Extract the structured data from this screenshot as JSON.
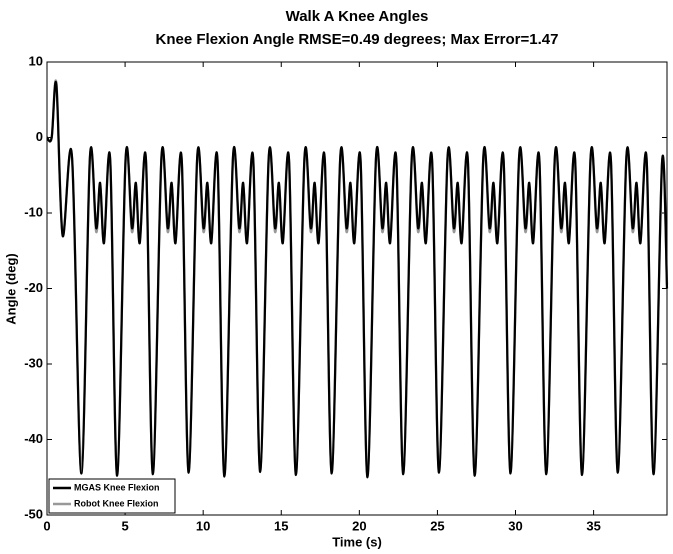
{
  "chart_data": {
    "type": "line",
    "title": "Walk A Knee Angles",
    "subtitle": "Knee Flexion Angle RMSE=0.49 degrees; Max Error=1.47",
    "x_label": "Time (s)",
    "y_label": "Angle (deg)",
    "xlim": [
      0,
      39.7
    ],
    "ylim": [
      -50,
      10
    ],
    "xticks": [
      0,
      5,
      10,
      15,
      20,
      25,
      30,
      35
    ],
    "yticks": [
      -50,
      -40,
      -30,
      -20,
      -10,
      0,
      10
    ],
    "legend": "lower left",
    "x": [
      0,
      0.3,
      0.6,
      1.0,
      1.6,
      2.2,
      2.75,
      3.15,
      3.4,
      3.65,
      4.05,
      4.49,
      5.04,
      5.44,
      5.69,
      5.94,
      6.34,
      6.78,
      7.33,
      7.73,
      7.98,
      8.23,
      8.63,
      9.07,
      9.62,
      10.02,
      10.27,
      10.52,
      10.92,
      11.36,
      11.91,
      12.31,
      12.56,
      12.81,
      13.21,
      13.65,
      14.2,
      14.6,
      14.85,
      15.1,
      15.5,
      15.94,
      16.49,
      16.89,
      17.14,
      17.39,
      17.79,
      18.23,
      18.78,
      19.18,
      19.43,
      19.68,
      20.08,
      20.52,
      21.07,
      21.47,
      21.72,
      21.97,
      22.37,
      22.81,
      23.36,
      23.76,
      24.01,
      24.26,
      24.66,
      25.1,
      25.65,
      26.05,
      26.3,
      26.55,
      26.95,
      27.39,
      27.94,
      28.34,
      28.59,
      28.84,
      29.24,
      29.68,
      30.23,
      30.63,
      30.88,
      31.13,
      31.53,
      31.97,
      32.52,
      32.92,
      33.17,
      33.42,
      33.82,
      34.26,
      34.81,
      35.21,
      35.46,
      35.71,
      36.11,
      36.55,
      37.1,
      37.5,
      37.75,
      38.0,
      38.4,
      38.84,
      39.39,
      39.7
    ],
    "series": [
      {
        "name": "MGAS Knee Flexion",
        "color": "#000000",
        "values": [
          0,
          0,
          7,
          -13,
          -2.5,
          -44.5,
          -2.5,
          -12,
          -6,
          -14,
          -3,
          -44.8,
          -2.5,
          -12,
          -6,
          -14,
          -3,
          -44.6,
          -2.5,
          -12,
          -6,
          -14,
          -3,
          -44.4,
          -2.5,
          -12,
          -6,
          -14,
          -3,
          -44.9,
          -2.5,
          -12,
          -6,
          -14,
          -3,
          -44.3,
          -2.5,
          -12,
          -6,
          -14,
          -3,
          -44.7,
          -2.5,
          -12,
          -6,
          -14,
          -3,
          -44.5,
          -2.5,
          -12,
          -6,
          -14,
          -3,
          -45,
          -2.5,
          -12,
          -6,
          -14,
          -3,
          -44.6,
          -2.5,
          -12,
          -6,
          -14,
          -3,
          -44.4,
          -2.5,
          -12,
          -6,
          -14,
          -3,
          -44.8,
          -2.5,
          -12,
          -6,
          -14,
          -3,
          -44.5,
          -2.5,
          -12,
          -6,
          -14,
          -3,
          -44.6,
          -2.5,
          -12,
          -6,
          -14,
          -3,
          -44.7,
          -2.5,
          -12,
          -6,
          -14,
          -3,
          -44.4,
          -2.5,
          -12,
          -6,
          -14,
          -3,
          -44.6,
          -3,
          -20
        ]
      },
      {
        "name": "Robot Knee Flexion",
        "color": "#999999",
        "values": [
          0,
          0,
          7.2,
          -12.8,
          -2.8,
          -44.1,
          -2.8,
          -12.5,
          -6.3,
          -13.5,
          -3.3,
          -44.4,
          -2.8,
          -12.5,
          -6.3,
          -13.5,
          -3.3,
          -44.2,
          -2.8,
          -12.5,
          -6.3,
          -13.5,
          -3.3,
          -44,
          -2.8,
          -12.5,
          -6.3,
          -13.5,
          -3.3,
          -44.5,
          -2.8,
          -12.5,
          -6.3,
          -13.5,
          -3.3,
          -43.9,
          -2.8,
          -12.5,
          -6.3,
          -13.5,
          -3.3,
          -44.3,
          -2.8,
          -12.5,
          -6.3,
          -13.5,
          -3.3,
          -44.1,
          -2.8,
          -12.5,
          -6.3,
          -13.5,
          -3.3,
          -44.6,
          -2.8,
          -12.5,
          -6.3,
          -13.5,
          -3.3,
          -44.2,
          -2.8,
          -12.5,
          -6.3,
          -13.5,
          -3.3,
          -44,
          -2.8,
          -12.5,
          -6.3,
          -13.5,
          -3.3,
          -44.4,
          -2.8,
          -12.5,
          -6.3,
          -13.5,
          -3.3,
          -44.1,
          -2.8,
          -12.5,
          -6.3,
          -13.5,
          -3.3,
          -44.2,
          -2.8,
          -12.5,
          -6.3,
          -13.5,
          -3.3,
          -44.3,
          -2.8,
          -12.5,
          -6.3,
          -13.5,
          -3.3,
          -44,
          -2.8,
          -12.5,
          -6.3,
          -13.5,
          -3.3,
          -44.2,
          -3.3,
          -19.5
        ]
      }
    ]
  }
}
